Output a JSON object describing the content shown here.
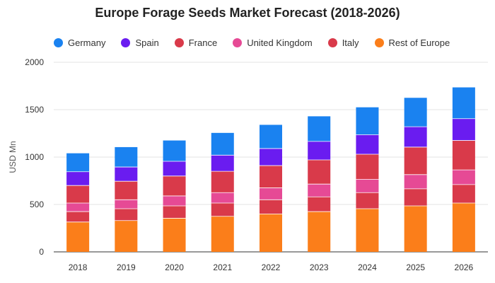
{
  "chart_data": {
    "type": "bar",
    "stacked": true,
    "title": "Europe Forage Seeds Market Forecast (2018-2026)",
    "ylabel": "USD Mn",
    "xlabel": "",
    "ylim": [
      0,
      2000
    ],
    "yticks": [
      0,
      500,
      1000,
      1500,
      2000
    ],
    "grid": true,
    "legend_position": "top",
    "categories": [
      "2018",
      "2019",
      "2020",
      "2021",
      "2022",
      "2023",
      "2024",
      "2025",
      "2026"
    ],
    "series": [
      {
        "name": "Rest of Europe",
        "color": "#fb7e1a",
        "values": [
          315,
          330,
          355,
          375,
          400,
          425,
          455,
          485,
          515
        ]
      },
      {
        "name": "Italy",
        "color": "#d93a4a",
        "values": [
          110,
          125,
          130,
          140,
          150,
          155,
          170,
          180,
          195
        ]
      },
      {
        "name": "United Kingdom",
        "color": "#e64a95",
        "values": [
          90,
          95,
          105,
          110,
          125,
          135,
          140,
          150,
          155
        ]
      },
      {
        "name": "France",
        "color": "#d93a4a",
        "values": [
          185,
          195,
          210,
          225,
          235,
          255,
          265,
          290,
          310
        ]
      },
      {
        "name": "Spain",
        "color": "#6a1cf0",
        "values": [
          145,
          150,
          155,
          170,
          180,
          195,
          205,
          215,
          230
        ]
      },
      {
        "name": "Germany",
        "color": "#1a82f0",
        "values": [
          195,
          210,
          220,
          235,
          250,
          265,
          290,
          305,
          330
        ]
      }
    ],
    "legend": [
      {
        "name": "Germany",
        "color": "#1a82f0"
      },
      {
        "name": "Spain",
        "color": "#6a1cf0"
      },
      {
        "name": "France",
        "color": "#d93a4a"
      },
      {
        "name": "United Kingdom",
        "color": "#e64a95"
      },
      {
        "name": "Italy",
        "color": "#d93a4a"
      },
      {
        "name": "Rest of Europe",
        "color": "#fb7e1a"
      }
    ]
  }
}
